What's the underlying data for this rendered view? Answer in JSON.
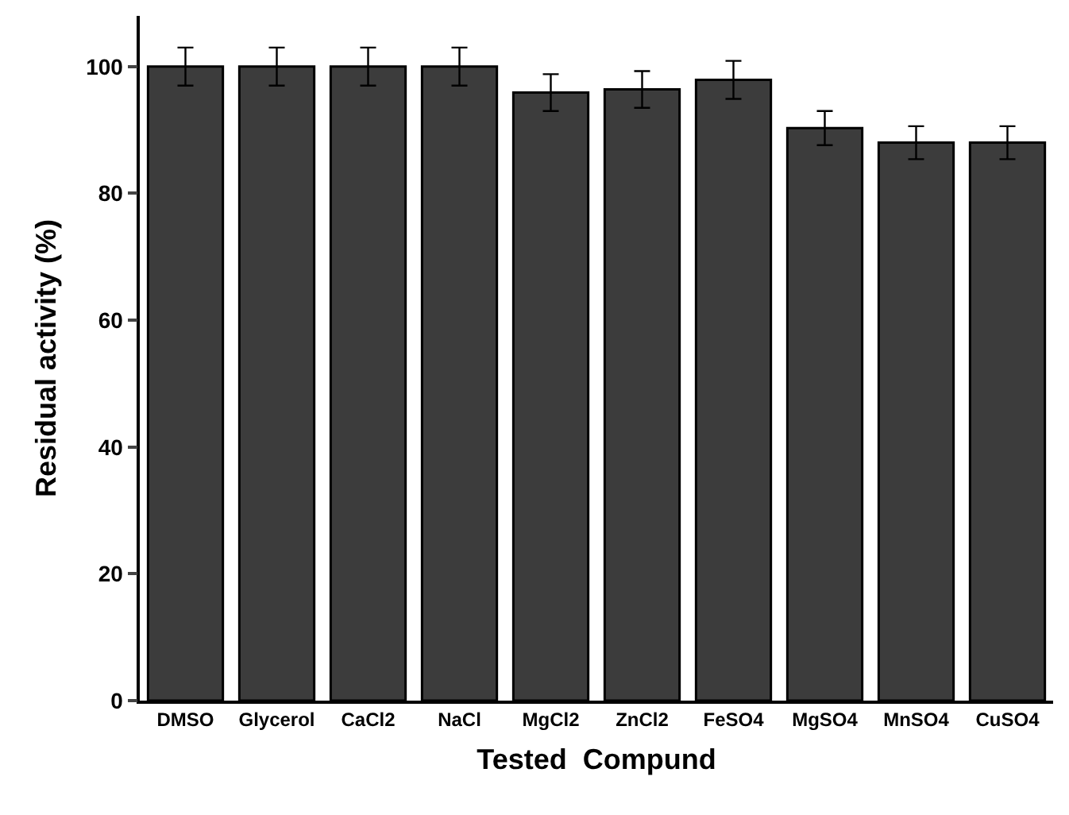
{
  "chart_data": {
    "type": "bar",
    "xlabel": "Tested  Compund",
    "ylabel": "Residual activity (%)",
    "categories": [
      "DMSO",
      "Glycerol",
      "CaCl2",
      "NaCl",
      "MgCl2",
      "ZnCl2",
      "FeSO4",
      "MgSO4",
      "MnSO4",
      "CuSO4"
    ],
    "values": [
      100,
      100,
      100,
      100,
      95.9,
      96.4,
      97.9,
      90.3,
      88,
      88
    ],
    "errors": [
      3,
      3,
      3,
      3,
      2.9,
      2.9,
      3,
      2.7,
      2.6,
      2.6
    ],
    "color": "#3c3c3c",
    "ylim": [
      0,
      108
    ],
    "yticks": [
      0,
      20,
      40,
      60,
      80,
      100
    ],
    "grid": false
  }
}
